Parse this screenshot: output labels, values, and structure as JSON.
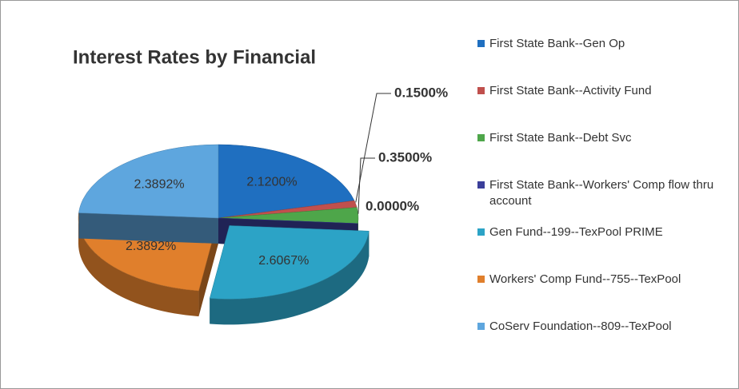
{
  "chart_data": {
    "type": "pie3d",
    "title": "Interest Rates by Financial",
    "categories": [
      "First State Bank--Gen Op",
      "First State Bank--Activity Fund",
      "First State Bank--Debt Svc",
      "First State Bank--Workers' Comp flow thru account",
      "Gen Fund--199--TexPool PRIME",
      "Workers' Comp Fund--755--TexPool",
      "CoServ Foundation--809--TexPool"
    ],
    "values": [
      2.12,
      0.15,
      0.35,
      0,
      2.6067,
      2.3892,
      2.3892
    ],
    "value_labels": [
      "2.1200%",
      "0.1500%",
      "0.3500%",
      "0.0000%",
      "2.6067%",
      "2.3892%",
      "2.3892%"
    ],
    "colors": [
      "#1f6fc0",
      "#c0504d",
      "#4ea64a",
      "#3b3f9a",
      "#2ca3c6",
      "#e07f2c",
      "#5ea6de"
    ],
    "exploded": [
      4
    ],
    "legend": "right"
  }
}
